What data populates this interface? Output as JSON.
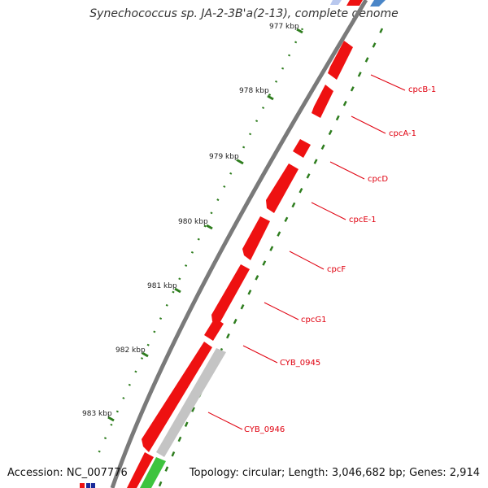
{
  "title": "Synechococcus sp. JA-2-3B'a(2-13), complete genome",
  "accession_text": "Accession: NC_007776",
  "summary_text": "Topology: circular; Length: 3,046,682 bp; Genes: 2,914",
  "colors": {
    "gene_red": "#ee1111",
    "label_red": "#e0000f",
    "backbone": "#7a7a7a",
    "tick_green": "#2e7d1e",
    "gray_gene": "#c4c4c4",
    "green_gene": "#3ec43e",
    "blue_gene": "#4a86c8"
  },
  "tick_labels": [
    "977 kbp",
    "978 kbp",
    "979 kbp",
    "980 kbp",
    "981 kbp",
    "982 kbp",
    "983 kbp"
  ],
  "gene_labels": [
    "cpcB-1",
    "cpcA-1",
    "cpcD",
    "cpcE-1",
    "cpcF",
    "cpcG1",
    "CYB_0945",
    "CYB_0946"
  ]
}
